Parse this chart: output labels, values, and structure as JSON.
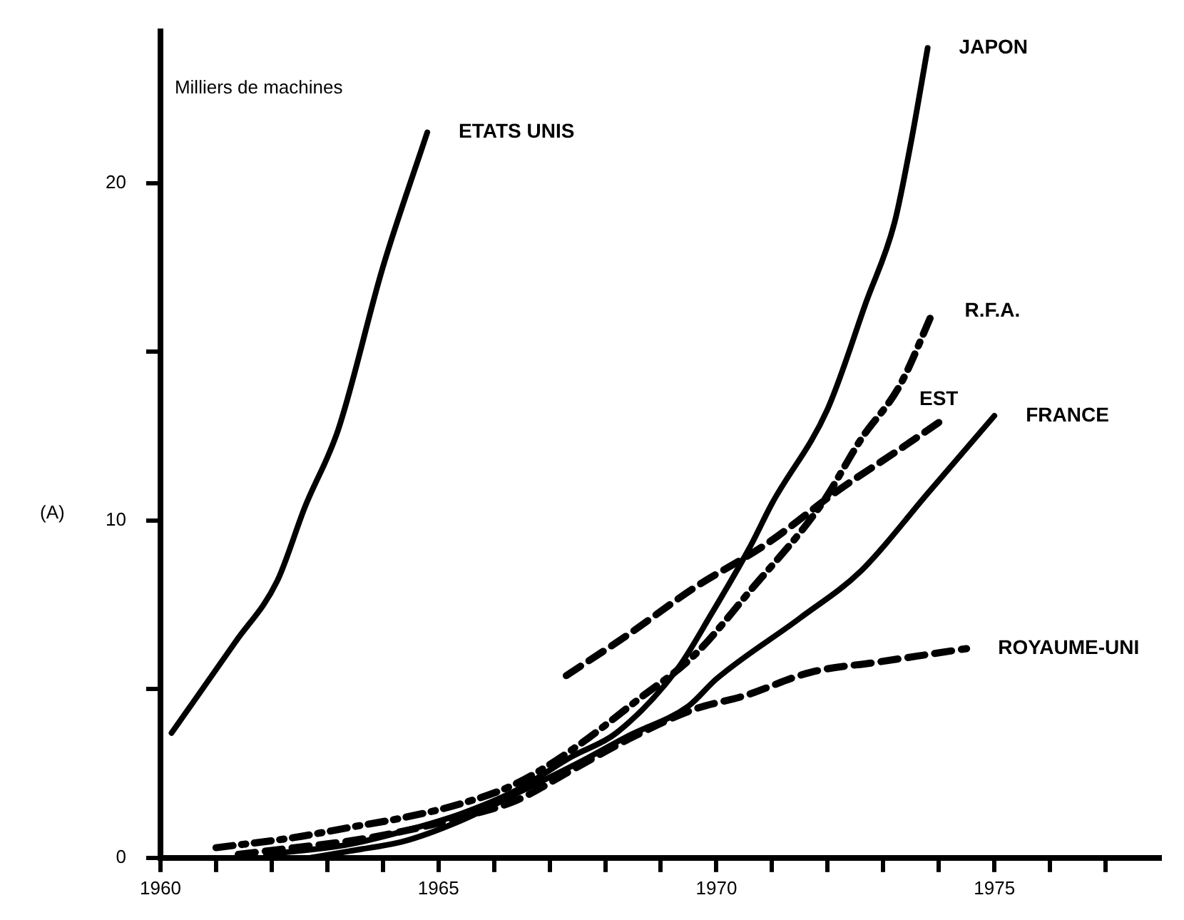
{
  "chart_data": {
    "type": "line",
    "ylabel": "Milliers de machines",
    "annotations": [
      "(A)"
    ],
    "xlim": [
      1960,
      1978
    ],
    "ylim": [
      0,
      24.5
    ],
    "xticks": [
      1960,
      {
        "value": 1961,
        "label": null
      },
      {
        "value": 1962,
        "label": null
      },
      {
        "value": 1963,
        "label": null
      },
      {
        "value": 1964,
        "label": null
      },
      1965,
      {
        "value": 1966,
        "label": null
      },
      {
        "value": 1967,
        "label": null
      },
      {
        "value": 1968,
        "label": null
      },
      {
        "value": 1969,
        "label": null
      },
      1970,
      {
        "value": 1971,
        "label": null
      },
      {
        "value": 1972,
        "label": null
      },
      {
        "value": 1973,
        "label": null
      },
      {
        "value": 1974,
        "label": null
      },
      1975,
      {
        "value": 1976,
        "label": null
      },
      {
        "value": 1977,
        "label": null
      }
    ],
    "yticks": [
      0,
      {
        "value": 5,
        "label": null
      },
      10,
      {
        "value": 15,
        "label": null
      },
      20
    ],
    "grid": false,
    "legend": false,
    "marker": "none",
    "series": [
      {
        "name": "ETATS UNIS",
        "color": "#000000",
        "line_style": "solid",
        "x": [
          1960.2,
          1961.35,
          1962.1,
          1962.6,
          1963.2,
          1964.0,
          1964.8
        ],
        "values": [
          3.7,
          6.4,
          8.2,
          10.4,
          12.7,
          17.5,
          21.5
        ]
      },
      {
        "name": "JAPON",
        "color": "#000000",
        "line_style": "solid",
        "x": [
          1961.9,
          1963.4,
          1964.4,
          1965.4,
          1966.4,
          1967.4,
          1968.2,
          1969.3,
          1969.9,
          1970.6,
          1971.0,
          1972.0,
          1972.7,
          1973.2,
          1973.5,
          1973.8
        ],
        "values": [
          0.1,
          0.4,
          0.8,
          1.3,
          2.0,
          3.0,
          3.7,
          5.6,
          7.2,
          9.2,
          10.5,
          13.3,
          16.5,
          18.8,
          21.2,
          24
        ]
      },
      {
        "name": "R.F.A.",
        "color": "#000000",
        "line_style": "dashdot",
        "x": [
          1961.0,
          1962.4,
          1963.4,
          1964.4,
          1965.4,
          1966.4,
          1967.4,
          1968.6,
          1969.6,
          1970.6,
          1971.9,
          1972.6,
          1973.3,
          1973.9
        ],
        "values": [
          0.3,
          0.6,
          0.9,
          1.2,
          1.6,
          2.2,
          3.2,
          4.7,
          6.0,
          7.9,
          10.5,
          12.4,
          14,
          16.2
        ]
      },
      {
        "name": "FRANCE",
        "color": "#000000",
        "line_style": "solid",
        "x": [
          1962.7,
          1963.4,
          1964.4,
          1965.4,
          1966.4,
          1967.5,
          1968.4,
          1969.5,
          1970.0,
          1971.5,
          1972.6,
          1973.8,
          1975.0
        ],
        "values": [
          0,
          0.2,
          0.5,
          1.1,
          1.9,
          2.8,
          3.6,
          4.5,
          5.3,
          7.1,
          8.5,
          10.8,
          13.1
        ]
      },
      {
        "name": "ROYAUME-UNI",
        "color": "#000000",
        "line_style": "dashed",
        "x": [
          1961.4,
          1962.4,
          1963.4,
          1964.4,
          1965.4,
          1966.4,
          1967.4,
          1968.4,
          1969.6,
          1970.5,
          1971.7,
          1972.9,
          1974.5
        ],
        "values": [
          0.1,
          0.3,
          0.5,
          0.8,
          1.2,
          1.7,
          2.6,
          3.5,
          4.4,
          4.8,
          5.5,
          5.8,
          6.2
        ]
      },
      {
        "name": "EST",
        "color": "#000000",
        "line_style": "dashed",
        "x": [
          1967.3,
          1968.4,
          1969.6,
          1970.9,
          1972.2,
          1973.2,
          1974.0
        ],
        "values": [
          5.4,
          6.6,
          8.0,
          9.3,
          10.9,
          12,
          12.9
        ]
      }
    ]
  }
}
